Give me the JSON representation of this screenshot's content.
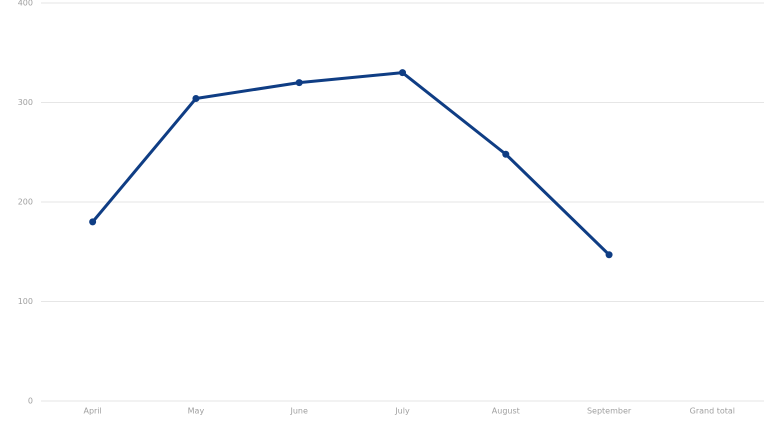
{
  "chart_data": {
    "type": "line",
    "categories": [
      "April",
      "May",
      "June",
      "July",
      "August",
      "September",
      "Grand total"
    ],
    "values": [
      180,
      304,
      320,
      330,
      248,
      147,
      null
    ],
    "color": "#0f3d84",
    "ylim": [
      0,
      400
    ],
    "yticks": [
      0,
      100,
      200,
      300,
      400
    ],
    "grid": true
  }
}
